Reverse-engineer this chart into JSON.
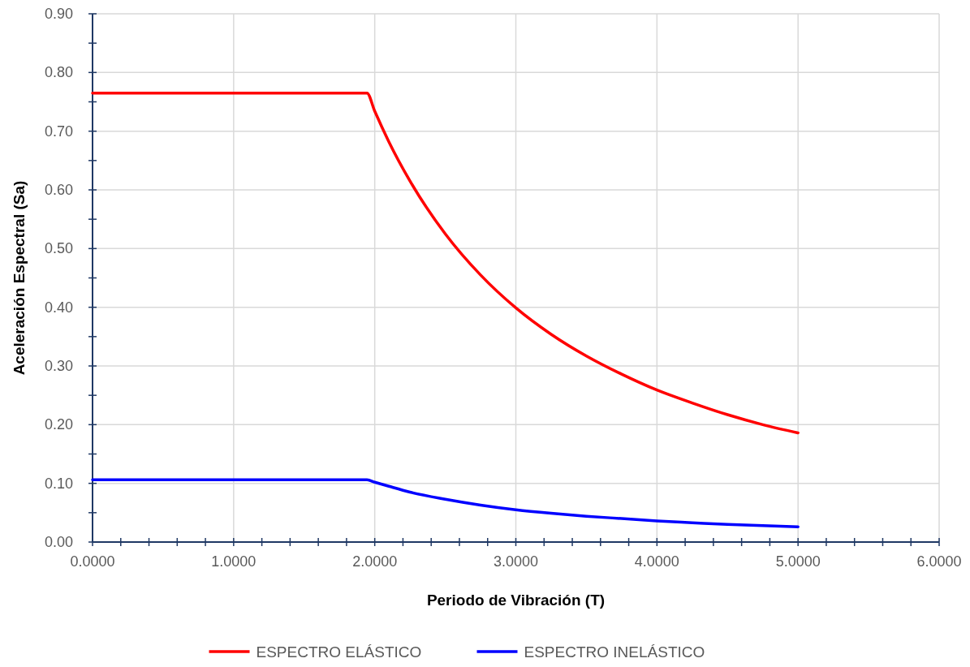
{
  "chart_data": {
    "type": "line",
    "xlabel": "Periodo de Vibración (T)",
    "ylabel": "Aceleración Espectral (Sa)",
    "xlim": [
      0,
      6
    ],
    "ylim": [
      0,
      0.9
    ],
    "xticks": [
      {
        "value": 0,
        "label": "0.0000"
      },
      {
        "value": 0.2,
        "label": null
      },
      {
        "value": 0.4,
        "label": null
      },
      {
        "value": 0.6,
        "label": null
      },
      {
        "value": 0.8,
        "label": null
      },
      {
        "value": 1,
        "label": "1.0000"
      },
      {
        "value": 1.2,
        "label": null
      },
      {
        "value": 1.4,
        "label": null
      },
      {
        "value": 1.6,
        "label": null
      },
      {
        "value": 1.8,
        "label": null
      },
      {
        "value": 2,
        "label": "2.0000"
      },
      {
        "value": 2.2,
        "label": null
      },
      {
        "value": 2.4,
        "label": null
      },
      {
        "value": 2.6,
        "label": null
      },
      {
        "value": 2.8,
        "label": null
      },
      {
        "value": 3,
        "label": "3.0000"
      },
      {
        "value": 3.2,
        "label": null
      },
      {
        "value": 3.4,
        "label": null
      },
      {
        "value": 3.6,
        "label": null
      },
      {
        "value": 3.8,
        "label": null
      },
      {
        "value": 4,
        "label": "4.0000"
      },
      {
        "value": 4.2,
        "label": null
      },
      {
        "value": 4.4,
        "label": null
      },
      {
        "value": 4.6,
        "label": null
      },
      {
        "value": 4.8,
        "label": null
      },
      {
        "value": 5,
        "label": "5.0000"
      },
      {
        "value": 5.2,
        "label": null
      },
      {
        "value": 5.4,
        "label": null
      },
      {
        "value": 5.6,
        "label": null
      },
      {
        "value": 5.8,
        "label": null
      },
      {
        "value": 6,
        "label": "6.0000"
      }
    ],
    "yticks": [
      {
        "value": 0,
        "label": "0.00"
      },
      {
        "value": 0.05,
        "label": null
      },
      {
        "value": 0.1,
        "label": "0.10"
      },
      {
        "value": 0.15,
        "label": null
      },
      {
        "value": 0.2,
        "label": "0.20"
      },
      {
        "value": 0.25,
        "label": null
      },
      {
        "value": 0.3,
        "label": "0.30"
      },
      {
        "value": 0.35,
        "label": null
      },
      {
        "value": 0.4,
        "label": "0.40"
      },
      {
        "value": 0.45,
        "label": null
      },
      {
        "value": 0.5,
        "label": "0.50"
      },
      {
        "value": 0.55,
        "label": null
      },
      {
        "value": 0.6,
        "label": "0.60"
      },
      {
        "value": 0.65,
        "label": null
      },
      {
        "value": 0.7,
        "label": "0.70"
      },
      {
        "value": 0.75,
        "label": null
      },
      {
        "value": 0.8,
        "label": "0.80"
      },
      {
        "value": 0.85,
        "label": null
      },
      {
        "value": 0.9,
        "label": "0.90"
      }
    ],
    "x": [
      0,
      1.945,
      2.0,
      2.1,
      2.25,
      2.5,
      2.75,
      3.0,
      3.25,
      3.5,
      3.75,
      4.0,
      4.25,
      4.5,
      4.75,
      5.0
    ],
    "series": [
      {
        "name": "ESPECTRO ELÁSTICO",
        "color": "#ff0000",
        "values": [
          0.765,
          0.765,
          0.734,
          0.682,
          0.615,
          0.525,
          0.455,
          0.399,
          0.354,
          0.317,
          0.286,
          0.259,
          0.237,
          0.217,
          0.2,
          0.186
        ]
      },
      {
        "name": "ESPECTRO INELÁSTICO",
        "color": "#0000ff",
        "values": [
          0.106,
          0.106,
          0.102,
          0.095,
          0.085,
          0.073,
          0.063,
          0.055,
          0.049,
          0.044,
          0.04,
          0.036,
          0.033,
          0.03,
          0.028,
          0.026
        ]
      }
    ],
    "grid": true,
    "legend": "bottom",
    "marker": "none",
    "line_style": "solid"
  }
}
